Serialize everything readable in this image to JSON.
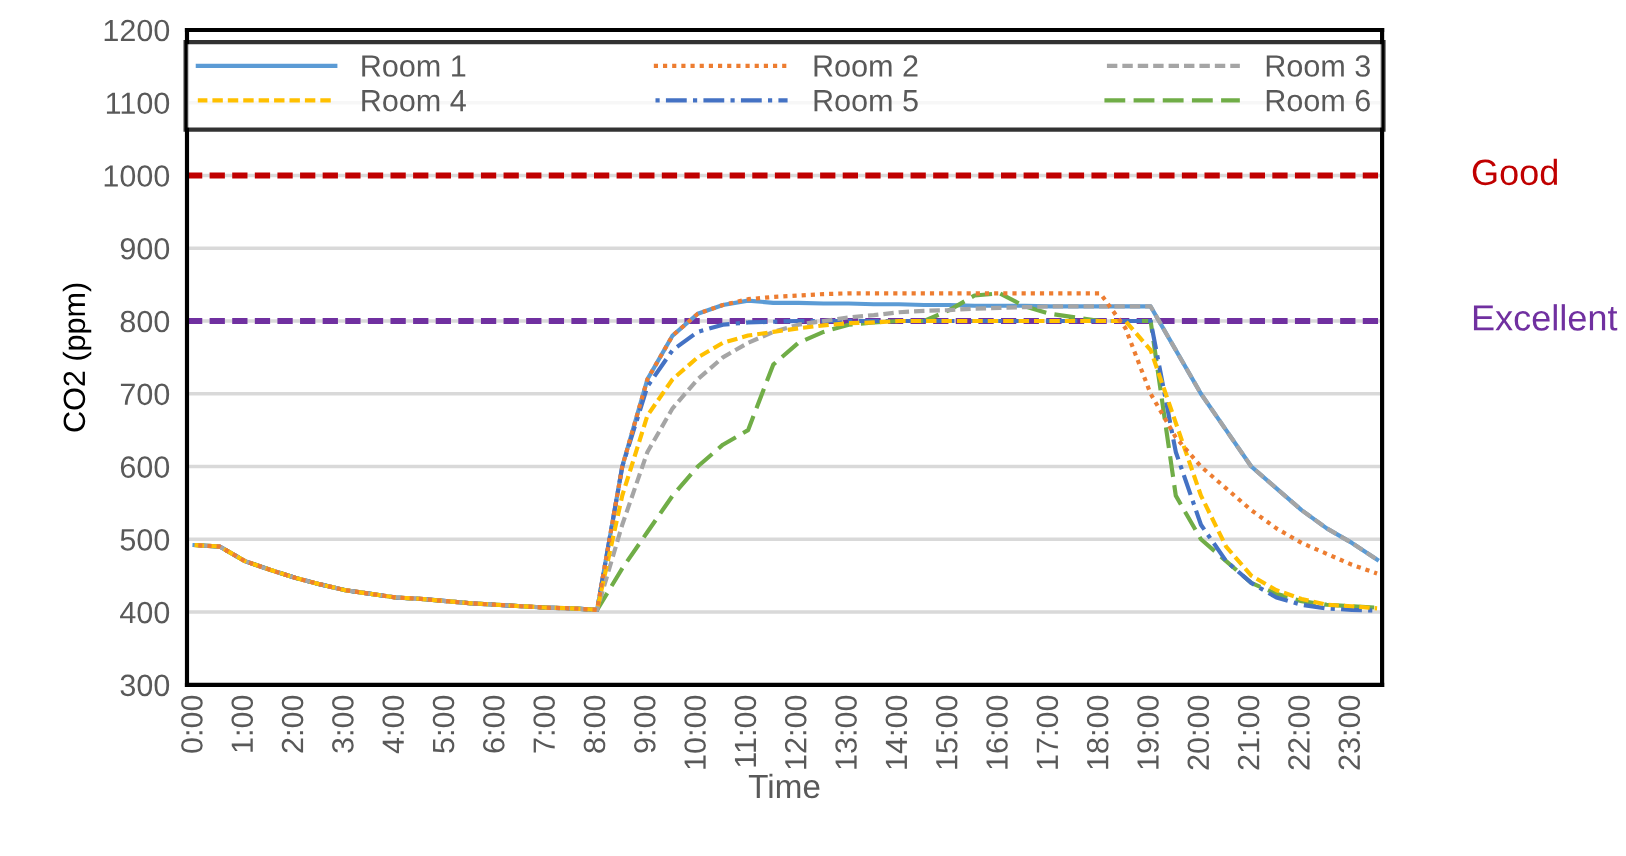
{
  "chart_data": {
    "type": "line",
    "xlabel": "Time",
    "ylabel": "CO2 (ppm)",
    "x": [
      0,
      0.5,
      1,
      1.5,
      2,
      2.5,
      3,
      3.5,
      4,
      4.5,
      5,
      5.5,
      6,
      6.5,
      7,
      7.5,
      8,
      8.5,
      9,
      9.5,
      10,
      10.5,
      11,
      11.5,
      12,
      12.5,
      13,
      13.5,
      14,
      14.5,
      15,
      15.5,
      16,
      16.5,
      17,
      17.5,
      18,
      18.5,
      19,
      19.5,
      20,
      20.5,
      21,
      21.5,
      22,
      22.5,
      23,
      23.5
    ],
    "xlim": [
      -0.15,
      23.6
    ],
    "xticks": [
      {
        "value": 0,
        "label": "0:00"
      },
      {
        "value": 1,
        "label": "1:00"
      },
      {
        "value": 2,
        "label": "2:00"
      },
      {
        "value": 3,
        "label": "3:00"
      },
      {
        "value": 4,
        "label": "4:00"
      },
      {
        "value": 5,
        "label": "5:00"
      },
      {
        "value": 6,
        "label": "6:00"
      },
      {
        "value": 7,
        "label": "7:00"
      },
      {
        "value": 8,
        "label": "8:00"
      },
      {
        "value": 9,
        "label": "9:00"
      },
      {
        "value": 10,
        "label": "10:00"
      },
      {
        "value": 11,
        "label": "11:00"
      },
      {
        "value": 12,
        "label": "12:00"
      },
      {
        "value": 13,
        "label": "13:00"
      },
      {
        "value": 14,
        "label": "14:00"
      },
      {
        "value": 15,
        "label": "15:00"
      },
      {
        "value": 16,
        "label": "16:00"
      },
      {
        "value": 17,
        "label": "17:00"
      },
      {
        "value": 18,
        "label": "18:00"
      },
      {
        "value": 19,
        "label": "19:00"
      },
      {
        "value": 20,
        "label": "20:00"
      },
      {
        "value": 21,
        "label": "21:00"
      },
      {
        "value": 22,
        "label": "22:00"
      },
      {
        "value": 23,
        "label": "23:00"
      }
    ],
    "ylim": [
      300,
      1200
    ],
    "yticks": [
      300,
      400,
      500,
      600,
      700,
      800,
      900,
      1000,
      1100,
      1200
    ],
    "grid": "y",
    "legend": "top",
    "marker": "none",
    "series": [
      {
        "name": "Room 1",
        "color": "#5b9bd5",
        "line_style": "solid",
        "values": [
          492,
          490,
          470,
          458,
          447,
          438,
          430,
          425,
          420,
          418,
          415,
          412,
          410,
          408,
          406,
          405,
          403,
          600,
          720,
          780,
          810,
          822,
          828,
          825,
          825,
          824,
          824,
          823,
          823,
          822,
          822,
          821,
          821,
          821,
          820,
          820,
          820,
          820,
          820,
          760,
          700,
          650,
          600,
          570,
          540,
          515,
          495,
          472
        ]
      },
      {
        "name": "Room 2",
        "color": "#ed7d31",
        "line_style": "dotted",
        "values": [
          492,
          490,
          470,
          458,
          447,
          438,
          430,
          425,
          420,
          418,
          415,
          412,
          410,
          408,
          406,
          405,
          403,
          600,
          720,
          780,
          810,
          822,
          830,
          833,
          835,
          837,
          838,
          838,
          838,
          838,
          838,
          838,
          838,
          838,
          838,
          838,
          838,
          790,
          700,
          640,
          600,
          570,
          540,
          515,
          495,
          480,
          465,
          453
        ]
      },
      {
        "name": "Room 3",
        "color": "#a5a5a5",
        "line_style": "dashed",
        "values": [
          492,
          490,
          470,
          458,
          447,
          438,
          430,
          425,
          420,
          418,
          415,
          412,
          410,
          408,
          406,
          405,
          403,
          520,
          620,
          680,
          720,
          750,
          770,
          785,
          795,
          800,
          805,
          808,
          812,
          814,
          815,
          817,
          818,
          819,
          820,
          820,
          820,
          820,
          820,
          760,
          700,
          650,
          600,
          570,
          540,
          515,
          495,
          472
        ]
      },
      {
        "name": "Room 4",
        "color": "#ffc000",
        "line_style": "dashed",
        "values": [
          492,
          490,
          470,
          458,
          447,
          438,
          430,
          425,
          420,
          418,
          415,
          412,
          410,
          408,
          406,
          405,
          403,
          560,
          670,
          720,
          750,
          770,
          780,
          785,
          790,
          794,
          797,
          798,
          800,
          800,
          800,
          800,
          800,
          800,
          800,
          800,
          800,
          800,
          760,
          660,
          560,
          490,
          450,
          430,
          418,
          410,
          408,
          405
        ]
      },
      {
        "name": "Room 5",
        "color": "#4472c4",
        "line_style": "dashdot",
        "values": [
          492,
          490,
          470,
          458,
          447,
          438,
          430,
          425,
          420,
          418,
          415,
          412,
          410,
          408,
          406,
          405,
          403,
          600,
          710,
          760,
          785,
          795,
          798,
          799,
          800,
          800,
          800,
          800,
          800,
          800,
          800,
          800,
          800,
          800,
          800,
          800,
          800,
          800,
          800,
          620,
          520,
          470,
          440,
          420,
          410,
          405,
          403,
          402
        ]
      },
      {
        "name": "Room 6",
        "color": "#70ad47",
        "line_style": "longdash",
        "values": [
          492,
          490,
          470,
          458,
          447,
          438,
          430,
          425,
          420,
          418,
          415,
          412,
          410,
          408,
          406,
          405,
          403,
          460,
          510,
          560,
          600,
          630,
          650,
          740,
          770,
          785,
          795,
          798,
          800,
          800,
          815,
          835,
          838,
          820,
          810,
          805,
          800,
          800,
          800,
          560,
          500,
          470,
          440,
          425,
          415,
          410,
          408,
          406
        ]
      }
    ],
    "ref_lines": [
      {
        "axis": "y",
        "value": 1000,
        "label": "Good",
        "color": "#c00000",
        "line_style": "dashed"
      },
      {
        "axis": "y",
        "value": 800,
        "label": "Excellent",
        "color": "#7030a0",
        "line_style": "dashed"
      }
    ]
  }
}
